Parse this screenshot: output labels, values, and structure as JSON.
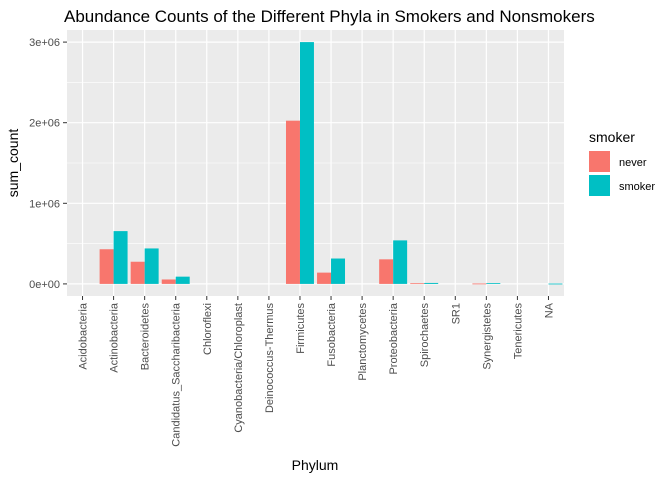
{
  "chart_data": {
    "type": "bar",
    "title": "Abundance Counts of the Different Phyla in Smokers and Nonsmokers",
    "xlabel": "Phylum",
    "ylabel": "sum_count",
    "categories": [
      "Acidobacteria",
      "Actinobacteria",
      "Bacteroidetes",
      "Candidatus_Saccharibacteria",
      "Chloroflexi",
      "Cyanobacteria/Chloroplast",
      "Deinococcus-Thermus",
      "Firmicutes",
      "Fusobacteria",
      "Planctomycetes",
      "Proteobacteria",
      "Spirochaetes",
      "SR1",
      "Synergistetes",
      "Tenericutes",
      "NA"
    ],
    "series": [
      {
        "name": "never",
        "color": "#F8766D",
        "values": [
          0,
          430000,
          275000,
          55000,
          0,
          0,
          0,
          2025000,
          140000,
          0,
          305000,
          8000,
          0,
          5000,
          0,
          0
        ]
      },
      {
        "name": "smoker",
        "color": "#00BFC4",
        "values": [
          0,
          655000,
          440000,
          90000,
          0,
          0,
          0,
          3000000,
          315000,
          0,
          540000,
          12000,
          0,
          10000,
          0,
          4000
        ]
      }
    ],
    "yticks": [
      0,
      1000000,
      2000000,
      3000000
    ],
    "ytick_labels": [
      "0e+00",
      "1e+06",
      "2e+06",
      "3e+06"
    ],
    "ylim": [
      -150000,
      3150000
    ],
    "grid": true,
    "legend": {
      "title": "smoker",
      "position": "right"
    },
    "panel_background": "#EBEBEB"
  }
}
